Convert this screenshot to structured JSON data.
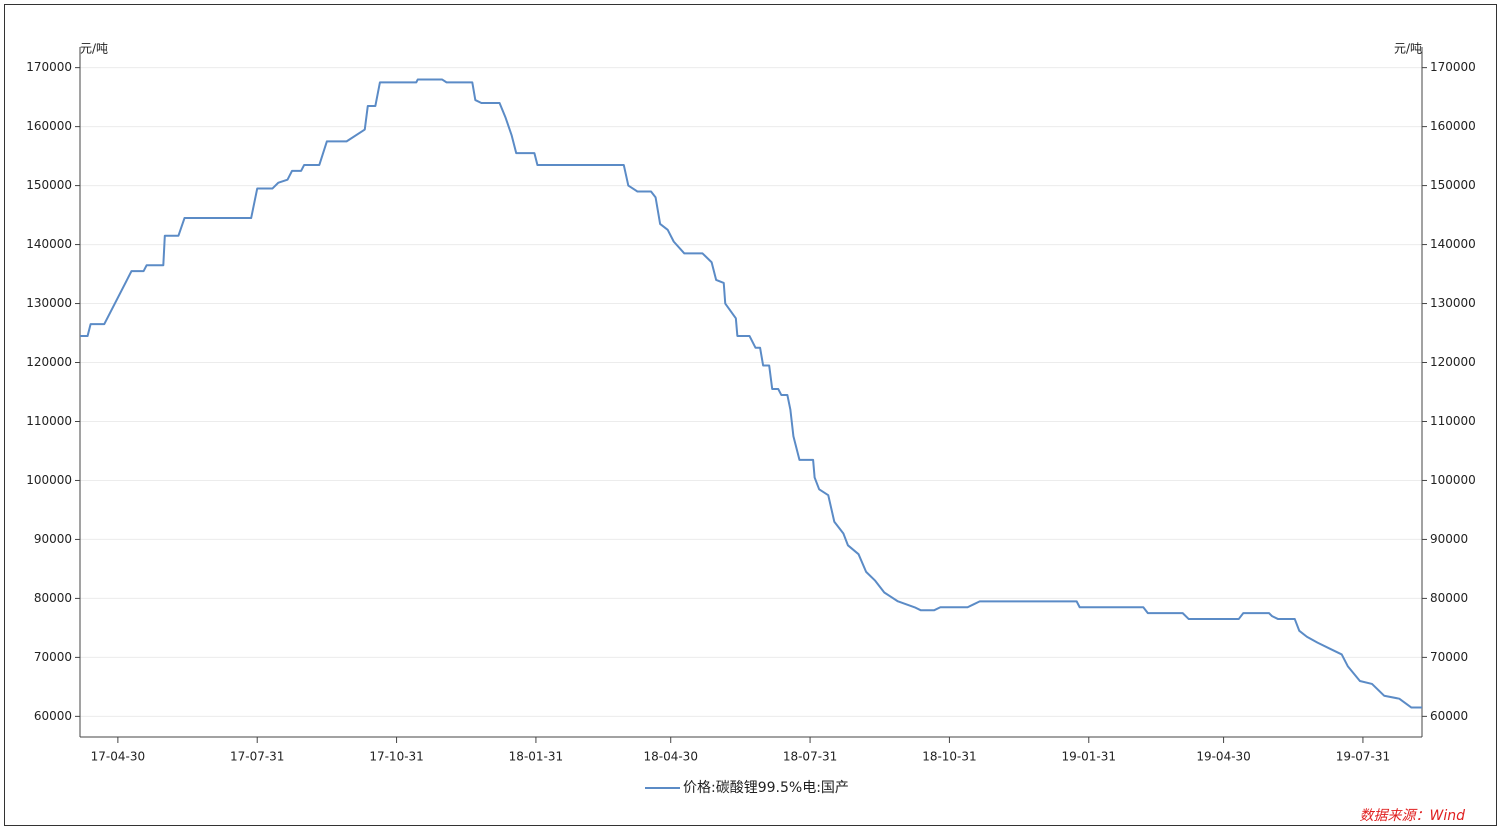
{
  "chart_data": {
    "type": "line",
    "y_unit": "元/吨",
    "source": "数据来源：Wind",
    "x": [
      "17-04-05",
      "17-04-10",
      "17-04-12",
      "17-04-21",
      "17-05-09",
      "17-05-17",
      "17-05-19",
      "17-05-30",
      "17-05-31",
      "17-06-09",
      "17-06-13",
      "17-07-27",
      "17-07-31",
      "17-08-10",
      "17-08-14",
      "17-08-20",
      "17-08-23",
      "17-08-29",
      "17-08-31",
      "17-09-10",
      "17-09-15",
      "17-09-28",
      "17-10-10",
      "17-10-12",
      "17-10-17",
      "17-10-20",
      "17-11-13",
      "17-11-14",
      "17-11-30",
      "17-12-03",
      "17-12-20",
      "17-12-22",
      "17-12-26",
      "18-01-07",
      "18-01-11",
      "18-01-15",
      "18-01-18",
      "18-01-30",
      "18-02-01",
      "18-03-30",
      "18-04-02",
      "18-04-08",
      "18-04-17",
      "18-04-20",
      "18-04-23",
      "18-04-28",
      "18-05-02",
      "18-05-09",
      "18-05-21",
      "18-05-27",
      "18-05-30",
      "18-06-04",
      "18-06-05",
      "18-06-12",
      "18-06-13",
      "18-06-21",
      "18-06-25",
      "18-06-28",
      "18-06-30",
      "18-07-04",
      "18-07-06",
      "18-07-10",
      "18-07-12",
      "18-07-16",
      "18-07-18",
      "18-07-20",
      "18-07-24",
      "18-08-02",
      "18-08-03",
      "18-08-06",
      "18-08-12",
      "18-08-16",
      "18-08-22",
      "18-08-25",
      "18-09-01",
      "18-09-06",
      "18-09-12",
      "18-09-18",
      "18-09-27",
      "18-10-08",
      "18-10-12",
      "18-10-21",
      "18-10-25",
      "18-11-12",
      "18-11-16",
      "18-11-20",
      "19-01-23",
      "19-01-25",
      "19-03-08",
      "19-03-11",
      "19-04-03",
      "19-04-07",
      "19-05-10",
      "19-05-13",
      "19-05-30",
      "19-06-01",
      "19-06-05",
      "19-06-16",
      "19-06-19",
      "19-06-24",
      "19-07-01",
      "19-07-09",
      "19-07-17",
      "19-07-21",
      "19-07-29",
      "19-08-06",
      "19-08-14",
      "19-08-24",
      "19-09-01",
      "19-09-08"
    ],
    "series": [
      {
        "name": "价格:碳酸锂99.5%电:国产",
        "color": "#5b8bc6",
        "values": [
          124500,
          124500,
          126500,
          126500,
          135500,
          135500,
          136500,
          136500,
          141500,
          141500,
          144500,
          144500,
          149500,
          149500,
          150500,
          151000,
          152500,
          152500,
          153500,
          153500,
          157500,
          157500,
          159500,
          163500,
          163500,
          167500,
          167500,
          168000,
          168000,
          167500,
          167500,
          164500,
          164000,
          164000,
          161500,
          158500,
          155500,
          155500,
          153500,
          153500,
          150000,
          149000,
          149000,
          148000,
          143500,
          142500,
          140500,
          138500,
          138500,
          137000,
          134000,
          133500,
          130000,
          127500,
          124500,
          124500,
          122500,
          122500,
          119500,
          119500,
          115500,
          115500,
          114500,
          114500,
          112000,
          107500,
          103500,
          103500,
          100500,
          98500,
          97500,
          93000,
          91000,
          89000,
          87500,
          84500,
          83000,
          81000,
          79500,
          78500,
          78000,
          78000,
          78500,
          78500,
          79000,
          79500,
          79500,
          78500,
          78500,
          77500,
          77500,
          76500,
          76500,
          77500,
          77500,
          77000,
          76500,
          76500,
          74500,
          73500,
          72500,
          71500,
          70500,
          68500,
          66000,
          65500,
          63500,
          63000,
          61500,
          61500
        ]
      }
    ],
    "xlim": [
      "17-04-05",
      "19-09-08"
    ],
    "xticks": [
      "17-04-30",
      "17-07-31",
      "17-10-31",
      "18-01-31",
      "18-04-30",
      "18-07-31",
      "18-10-31",
      "19-01-31",
      "19-04-30",
      "19-07-31"
    ],
    "ylim": [
      56500,
      173500
    ],
    "yticks": [
      60000,
      70000,
      80000,
      90000,
      100000,
      110000,
      120000,
      130000,
      140000,
      150000,
      160000,
      170000
    ],
    "grid": true
  }
}
